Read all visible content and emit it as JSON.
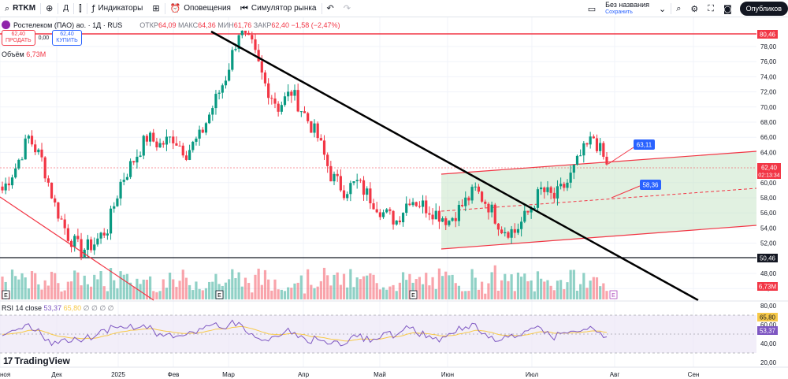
{
  "toolbar": {
    "symbol": "RTKM",
    "interval": "Д",
    "indicators": "Индикаторы",
    "alerts": "Оповещения",
    "replay": "Симулятор рынка",
    "layout_name": "Без названия",
    "layout_saved": "Сохранить",
    "publish": "Опубликов"
  },
  "legend": {
    "title": "Ростелеком (ПАО) ао. · 1Д · RUS",
    "open_label": "ОТКР",
    "open": "64,09",
    "high_label": "МАКС",
    "high": "64,36",
    "low_label": "МИН",
    "low": "61,76",
    "close_label": "ЗАКР",
    "close": "62,40",
    "change": "−1,58 (−2,47%)"
  },
  "trade": {
    "sell_price": "62,40",
    "sell_label": "ПРОДАТЬ",
    "spread": "0,00",
    "buy_price": "62,40",
    "buy_label": "КУПИТЬ"
  },
  "volume": {
    "label": "Объём",
    "value": "6,73M"
  },
  "rsi": {
    "label": "RSI 14 close",
    "value": "53,37",
    "ma": "65,80",
    "extra": "∅ ∅ ∅ ∅"
  },
  "brand": "TradingView",
  "price_axis": {
    "ticks": [
      "78,00",
      "76,00",
      "74,00",
      "72,00",
      "70,00",
      "68,00",
      "66,00",
      "64,00",
      "60,00",
      "58,00",
      "56,00",
      "54,00",
      "52,00",
      "48,00",
      "46,00"
    ],
    "badges": {
      "top_line": "80,46",
      "last_price": "62,40",
      "countdown": "02:13:34",
      "bottom_line": "50,46",
      "volume": "6,73M"
    }
  },
  "rsi_axis": {
    "ticks": [
      "80,00",
      "60,00",
      "40,00",
      "20,00"
    ],
    "badges": {
      "ma": "65,80",
      "rsi": "53,37"
    }
  },
  "time_axis": [
    "ноя",
    "Дек",
    "2025",
    "Фев",
    "Мар",
    "Апр",
    "Май",
    "Июн",
    "Июл",
    "Авг",
    "Сен"
  ],
  "annotations": {
    "upper": "63,11",
    "middle": "58,36"
  },
  "event_marks": [
    "E",
    "E",
    "E",
    "E",
    "E"
  ],
  "colors": {
    "up": "#089981",
    "down": "#f23645",
    "channel": "#c8e6c9",
    "rsi": "#7e57c2",
    "rsi_ma": "#f7c948",
    "accent": "#2962ff"
  },
  "chart_data": {
    "type": "candlestick",
    "symbol": "RTKM",
    "timeframe": "1D",
    "ylim": [
      44.5,
      81.5
    ],
    "approx_close_path": [
      59,
      62,
      66,
      63,
      57,
      53,
      51,
      52,
      54,
      60,
      63,
      66,
      65,
      66,
      64,
      66,
      70,
      74,
      80,
      78,
      73,
      70,
      72,
      69,
      66,
      61,
      59,
      60,
      58,
      56,
      55,
      58,
      57,
      56,
      55,
      57,
      59,
      57,
      54,
      53.5,
      56,
      59,
      58,
      60,
      63.5,
      66,
      62.4
    ],
    "horizontal_levels": [
      80.46,
      50.46
    ],
    "last_price": 62.4,
    "rsi": {
      "value": 53.37,
      "ma": 65.8,
      "levels": [
        70,
        50,
        30
      ]
    }
  }
}
